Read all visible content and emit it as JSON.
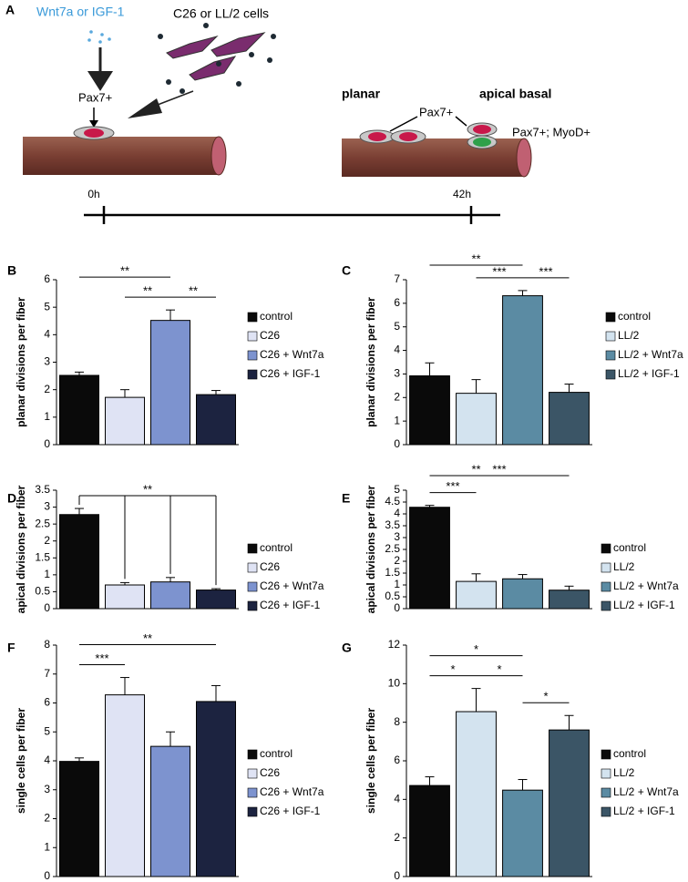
{
  "panel_a": {
    "label": "A",
    "factor": "Wnt7a or IGF-1",
    "cells": "C26 or LL/2 cells",
    "pax_left": "Pax7+",
    "planar": "planar",
    "apical_basal": "apical basal",
    "pax_right": "Pax7+",
    "pax_myod": "Pax7+; MyoD+",
    "t0": "0h",
    "t1": "42h"
  },
  "chart_data": [
    {
      "type": "bar",
      "label": "B",
      "ylabel": "planar divisions per fiber",
      "categories": [
        "control",
        "C26",
        "C26 + Wnt7a",
        "C26 + IGF-1"
      ],
      "values": [
        2.52,
        1.72,
        4.52,
        1.82
      ],
      "errors": [
        0.12,
        0.28,
        0.38,
        0.15
      ],
      "colors": [
        "#0a0a0a",
        "#dfe3f4",
        "#7d93cf",
        "#1c2340"
      ],
      "ylim": [
        0,
        6
      ],
      "yticks": [
        0,
        1,
        2,
        3,
        4,
        5,
        6
      ],
      "annotations": [
        {
          "text": "**",
          "between": [
            "C26",
            "C26 + Wnt7a"
          ]
        },
        {
          "text": "**",
          "between": [
            "C26 + Wnt7a",
            "C26 + IGF-1"
          ]
        },
        {
          "text": "**",
          "between": [
            "control",
            "C26 + Wnt7a"
          ]
        }
      ]
    },
    {
      "type": "bar",
      "label": "C",
      "ylabel": "planar divisions per fiber",
      "categories": [
        "control",
        "LL/2",
        "LL/2 + Wnt7a",
        "LL/2 + IGF-1"
      ],
      "values": [
        2.92,
        2.18,
        6.32,
        2.22
      ],
      "errors": [
        0.55,
        0.58,
        0.22,
        0.35
      ],
      "colors": [
        "#0a0a0a",
        "#d3e3ef",
        "#5b8ba3",
        "#3b5566"
      ],
      "ylim": [
        0,
        7
      ],
      "yticks": [
        0,
        1,
        2,
        3,
        4,
        5,
        6,
        7
      ],
      "annotations": [
        {
          "text": "***",
          "between": [
            "LL/2",
            "LL/2 + Wnt7a"
          ]
        },
        {
          "text": "***",
          "between": [
            "LL/2 + Wnt7a",
            "LL/2 + IGF-1"
          ]
        },
        {
          "text": "**",
          "between": [
            "control",
            "LL/2 + Wnt7a"
          ]
        }
      ]
    },
    {
      "type": "bar",
      "label": "D",
      "ylabel": "apical divisions per fiber",
      "categories": [
        "control",
        "C26",
        "C26 + Wnt7a",
        "C26 + IGF-1"
      ],
      "values": [
        2.78,
        0.7,
        0.79,
        0.55
      ],
      "errors": [
        0.18,
        0.07,
        0.13,
        0.04
      ],
      "colors": [
        "#0a0a0a",
        "#dfe3f4",
        "#7d93cf",
        "#1c2340"
      ],
      "ylim": [
        0,
        3.5
      ],
      "yticks": [
        0,
        0.5,
        1,
        1.5,
        2,
        2.5,
        3,
        3.5
      ],
      "annotations": [
        {
          "text": "**",
          "between": [
            "control",
            "C26",
            "C26 + Wnt7a",
            "C26 + IGF-1"
          ]
        }
      ]
    },
    {
      "type": "bar",
      "label": "E",
      "ylabel": "apical divisions per fiber",
      "categories": [
        "control",
        "LL/2",
        "LL/2 + Wnt7a",
        "LL/2 + IGF-1"
      ],
      "values": [
        4.28,
        1.15,
        1.26,
        0.78
      ],
      "errors": [
        0.08,
        0.32,
        0.18,
        0.17
      ],
      "colors": [
        "#0a0a0a",
        "#d3e3ef",
        "#5b8ba3",
        "#3b5566"
      ],
      "ylim": [
        0,
        5
      ],
      "yticks": [
        0,
        0.5,
        1,
        1.5,
        2,
        2.5,
        3,
        3.5,
        4,
        4.5,
        5
      ],
      "annotations": [
        {
          "text": "***",
          "between": [
            "control",
            "LL/2"
          ]
        },
        {
          "text": "**",
          "between": [
            "control",
            "LL/2 + Wnt7a"
          ]
        },
        {
          "text": "***",
          "between": [
            "control",
            "LL/2 + IGF-1"
          ]
        }
      ]
    },
    {
      "type": "bar",
      "label": "F",
      "ylabel": "single cells per fiber",
      "categories": [
        "control",
        "C26",
        "C26 + Wnt7a",
        "C26 + IGF-1"
      ],
      "values": [
        3.98,
        6.28,
        4.5,
        6.05
      ],
      "errors": [
        0.12,
        0.6,
        0.5,
        0.55
      ],
      "colors": [
        "#0a0a0a",
        "#dfe3f4",
        "#7d93cf",
        "#1c2340"
      ],
      "ylim": [
        0,
        8
      ],
      "yticks": [
        0,
        1,
        2,
        3,
        4,
        5,
        6,
        7,
        8
      ],
      "annotations": [
        {
          "text": "***",
          "between": [
            "control",
            "C26"
          ]
        },
        {
          "text": "**",
          "between": [
            "control",
            "C26 + IGF-1"
          ]
        }
      ]
    },
    {
      "type": "bar",
      "label": "G",
      "ylabel": "single cells per fiber",
      "categories": [
        "control",
        "LL/2",
        "LL/2 + Wnt7a",
        "LL/2 + IGF-1"
      ],
      "values": [
        4.72,
        8.55,
        4.48,
        7.6
      ],
      "errors": [
        0.45,
        1.2,
        0.55,
        0.75
      ],
      "colors": [
        "#0a0a0a",
        "#d3e3ef",
        "#5b8ba3",
        "#3b5566"
      ],
      "ylim": [
        0,
        12
      ],
      "yticks": [
        0,
        2,
        4,
        6,
        8,
        10,
        12
      ],
      "annotations": [
        {
          "text": "*",
          "between": [
            "control",
            "LL/2"
          ]
        },
        {
          "text": "*",
          "between": [
            "LL/2",
            "LL/2 + Wnt7a"
          ]
        },
        {
          "text": "*",
          "between": [
            "LL/2 + Wnt7a",
            "LL/2 + IGF-1"
          ]
        },
        {
          "text": "*",
          "between": [
            "control",
            "LL/2 + Wnt7a"
          ]
        }
      ]
    }
  ]
}
